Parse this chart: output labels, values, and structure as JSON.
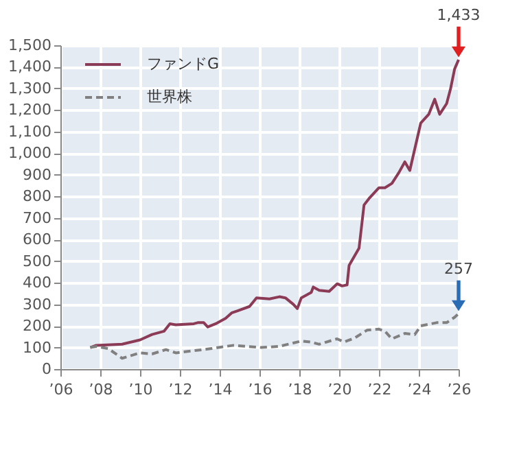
{
  "chart_data": {
    "type": "line",
    "x": [
      2007.5,
      2007.8,
      2009.1,
      2010,
      2010.6,
      2011.2,
      2011.5,
      2011.8,
      2012.7,
      2012.9,
      2013.2,
      2013.4,
      2013.8,
      2014.3,
      2014.6,
      2014.9,
      2015.5,
      2015.85,
      2016.5,
      2017,
      2017.3,
      2017.7,
      2017.9,
      2018.1,
      2018.6,
      2018.7,
      2019,
      2019.5,
      2019.9,
      2020.15,
      2020.4,
      2020.5,
      2021,
      2021.25,
      2021.5,
      2022,
      2022.3,
      2022.65,
      2023,
      2023.3,
      2023.55,
      2023.8,
      2024.1,
      2024.5,
      2024.8,
      2025.05,
      2025.4,
      2025.6,
      2025.8,
      2026
    ],
    "series": [
      {
        "name": "ファンドG",
        "color": "#8c3b57",
        "line_style": "solid",
        "values": [
          100,
          110,
          115,
          135,
          160,
          175,
          210,
          205,
          210,
          215,
          215,
          195,
          210,
          235,
          260,
          270,
          290,
          330,
          325,
          335,
          330,
          300,
          280,
          330,
          355,
          380,
          365,
          360,
          395,
          385,
          390,
          480,
          560,
          760,
          790,
          840,
          840,
          860,
          910,
          960,
          920,
          1020,
          1140,
          1180,
          1250,
          1180,
          1230,
          1300,
          1390,
          1433
        ]
      },
      {
        "name": "世界株",
        "color": "#808080",
        "line_style": "dashed",
        "x": [
          2007.5,
          2007.8,
          2008.4,
          2009.1,
          2010,
          2010.6,
          2011.3,
          2011.8,
          2012.7,
          2013.6,
          2014.3,
          2014.7,
          2015.4,
          2016.1,
          2017,
          2018.1,
          2018.6,
          2019,
          2019.9,
          2020.25,
          2020.8,
          2021.4,
          2022,
          2022.3,
          2022.65,
          2023.3,
          2023.8,
          2024.1,
          2024.9,
          2025.4,
          2025.8,
          2026
        ],
        "values": [
          100,
          105,
          95,
          50,
          75,
          70,
          90,
          75,
          85,
          95,
          105,
          110,
          105,
          100,
          105,
          130,
          125,
          115,
          140,
          125,
          145,
          180,
          185,
          175,
          140,
          165,
          160,
          200,
          215,
          215,
          240,
          257
        ]
      }
    ],
    "xlim": [
      2006,
      2026
    ],
    "xticks": [
      {
        "value": 2006,
        "label": "’06"
      },
      {
        "value": 2008,
        "label": "’08"
      },
      {
        "value": 2010,
        "label": "’10"
      },
      {
        "value": 2012,
        "label": "’12"
      },
      {
        "value": 2014,
        "label": "’14"
      },
      {
        "value": 2016,
        "label": "’16"
      },
      {
        "value": 2018,
        "label": "’18"
      },
      {
        "value": 2020,
        "label": "’20"
      },
      {
        "value": 2022,
        "label": "’22"
      },
      {
        "value": 2024,
        "label": "’24"
      },
      {
        "value": 2026,
        "label": "’26"
      }
    ],
    "ylim": [
      0,
      1500
    ],
    "yticks": [
      0,
      100,
      200,
      300,
      400,
      500,
      600,
      700,
      800,
      900,
      {
        "value": 1000,
        "label": "1,000"
      },
      {
        "value": 1100,
        "label": "1,100"
      },
      {
        "value": 1200,
        "label": "1,200"
      },
      {
        "value": 1300,
        "label": "1,300"
      },
      {
        "value": 1400,
        "label": "1,400"
      },
      {
        "value": 1500,
        "label": "1,500"
      }
    ],
    "annotations": [
      {
        "text": "1,433",
        "x": 2026,
        "y": 1433
      },
      {
        "text": "257",
        "x": 2026,
        "y": 257
      }
    ],
    "grid": true,
    "legend": "top left",
    "marker": "none"
  }
}
